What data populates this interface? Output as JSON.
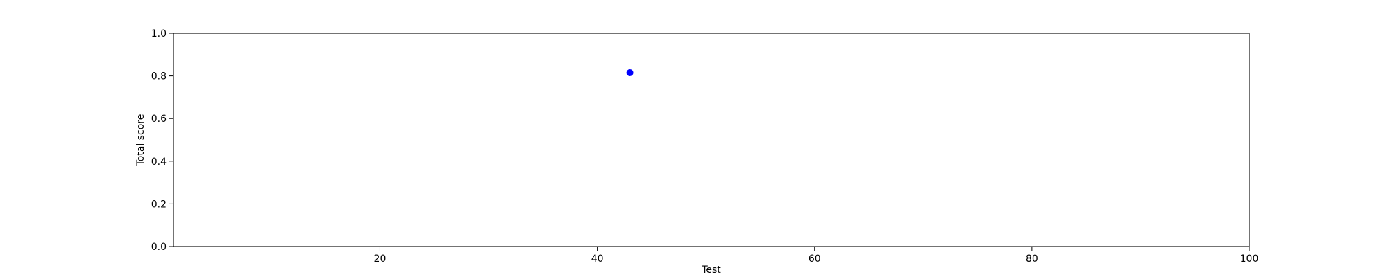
{
  "chart_data": {
    "type": "scatter",
    "title": "",
    "xlabel": "Test",
    "ylabel": "Total score",
    "xlim": [
      1,
      100
    ],
    "ylim": [
      0.0,
      1.0
    ],
    "x_ticks": [
      20,
      40,
      60,
      80,
      100
    ],
    "x_tick_labels": [
      "20",
      "40",
      "60",
      "80",
      "100"
    ],
    "y_ticks": [
      0.0,
      0.2,
      0.4,
      0.6,
      0.8,
      1.0
    ],
    "y_tick_labels": [
      "0.0",
      "0.2",
      "0.4",
      "0.6",
      "0.8",
      "1.0"
    ],
    "grid": false,
    "series": [
      {
        "color": "#0000ff",
        "points": [
          {
            "x": 43,
            "y": 0.815
          }
        ]
      }
    ]
  }
}
